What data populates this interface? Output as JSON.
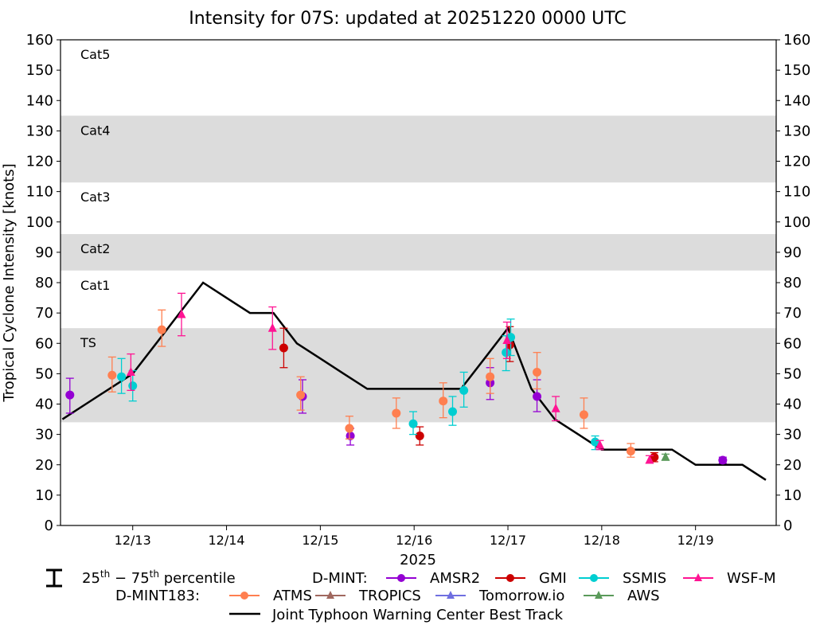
{
  "chart_data": {
    "type": "scatter",
    "title": "Intensity for 07S: updated at 20251220 0000 UTC",
    "ylabel": "Tropical Cyclone Intensity [knots]",
    "xlabel": "2025",
    "xlim": [
      12.23,
      19.86
    ],
    "ylim": [
      0,
      160
    ],
    "yticks": [
      0,
      10,
      20,
      30,
      40,
      50,
      60,
      70,
      80,
      90,
      100,
      110,
      120,
      130,
      140,
      150,
      160
    ],
    "xticks": [
      {
        "x": 13,
        "label": "12/13"
      },
      {
        "x": 14,
        "label": "12/14"
      },
      {
        "x": 15,
        "label": "12/15"
      },
      {
        "x": 16,
        "label": "12/16"
      },
      {
        "x": 17,
        "label": "12/17"
      },
      {
        "x": 18,
        "label": "12/18"
      },
      {
        "x": 19,
        "label": "12/19"
      }
    ],
    "category_bands": [
      {
        "label": "TS",
        "y0": 34,
        "y1": 65,
        "shaded": true
      },
      {
        "label": "Cat1",
        "y0": 65,
        "y1": 84,
        "shaded": false
      },
      {
        "label": "Cat2",
        "y0": 84,
        "y1": 96,
        "shaded": true
      },
      {
        "label": "Cat3",
        "y0": 96,
        "y1": 113,
        "shaded": false
      },
      {
        "label": "Cat4",
        "y0": 113,
        "y1": 135,
        "shaded": true
      },
      {
        "label": "Cat5",
        "y0": 135,
        "y1": 160,
        "shaded": false
      }
    ],
    "best_track": {
      "name": "Joint Typhoon Warning Center Best Track",
      "x": [
        12.25,
        12.5,
        12.75,
        13.0,
        13.25,
        13.5,
        13.75,
        14.0,
        14.25,
        14.5,
        14.75,
        15.0,
        15.25,
        15.5,
        15.75,
        16.0,
        16.25,
        16.5,
        16.75,
        17.0,
        17.25,
        17.5,
        17.75,
        18.0,
        18.25,
        18.5,
        18.75,
        19.0,
        19.25,
        19.5,
        19.75
      ],
      "y": [
        35,
        40,
        45,
        50,
        60,
        70,
        80,
        75,
        70,
        70,
        60,
        55,
        50,
        45,
        45,
        45,
        45,
        45,
        55,
        65,
        45,
        35,
        30,
        25,
        25,
        25,
        25,
        20,
        20,
        20,
        15
      ]
    },
    "series": [
      {
        "name": "AMSR2",
        "group": "D-MINT",
        "marker": "circle",
        "color": "#9400D3",
        "points": [
          {
            "x": 12.33,
            "y": 43,
            "lo": 37,
            "hi": 48.5
          },
          {
            "x": 14.81,
            "y": 42.5,
            "lo": 37,
            "hi": 48
          },
          {
            "x": 15.32,
            "y": 29.5,
            "lo": 26.5,
            "hi": 32
          },
          {
            "x": 16.81,
            "y": 47,
            "lo": 41.5,
            "hi": 52
          },
          {
            "x": 17.31,
            "y": 42.5,
            "lo": 37.5,
            "hi": 48
          },
          {
            "x": 19.29,
            "y": 21.5,
            "lo": 20.5,
            "hi": 22.5
          }
        ]
      },
      {
        "name": "GMI",
        "group": "D-MINT",
        "marker": "circle",
        "color": "#CC0000",
        "points": [
          {
            "x": 14.61,
            "y": 58.5,
            "lo": 52,
            "hi": 65
          },
          {
            "x": 16.06,
            "y": 29.5,
            "lo": 26.5,
            "hi": 32.5
          },
          {
            "x": 17.02,
            "y": 59.5,
            "lo": 54,
            "hi": 65.5
          },
          {
            "x": 18.56,
            "y": 22.5,
            "lo": 21,
            "hi": 24
          }
        ]
      },
      {
        "name": "SSMIS",
        "group": "D-MINT",
        "marker": "circle",
        "color": "#00CED1",
        "points": [
          {
            "x": 12.88,
            "y": 49,
            "lo": 43.5,
            "hi": 55
          },
          {
            "x": 13.0,
            "y": 46,
            "lo": 41,
            "hi": 51
          },
          {
            "x": 15.99,
            "y": 33.5,
            "lo": 30,
            "hi": 37.5
          },
          {
            "x": 16.41,
            "y": 37.5,
            "lo": 33,
            "hi": 42.5
          },
          {
            "x": 16.53,
            "y": 44.5,
            "lo": 39,
            "hi": 50.5
          },
          {
            "x": 16.98,
            "y": 57,
            "lo": 51,
            "hi": 62.5
          },
          {
            "x": 17.03,
            "y": 62,
            "lo": 56,
            "hi": 68
          },
          {
            "x": 17.93,
            "y": 27.5,
            "lo": 25,
            "hi": 29.5
          }
        ]
      },
      {
        "name": "WSF-M",
        "group": "D-MINT",
        "marker": "triangle",
        "color": "#FF1493",
        "points": [
          {
            "x": 12.98,
            "y": 50.5,
            "lo": 44.5,
            "hi": 56.5
          },
          {
            "x": 13.52,
            "y": 69.5,
            "lo": 62.5,
            "hi": 76.5
          },
          {
            "x": 14.49,
            "y": 65,
            "lo": 58,
            "hi": 72
          },
          {
            "x": 16.99,
            "y": 61,
            "lo": 55,
            "hi": 67
          },
          {
            "x": 17.51,
            "y": 38.5,
            "lo": 34.5,
            "hi": 42.5
          },
          {
            "x": 17.98,
            "y": 26.5,
            "lo": 25,
            "hi": 28
          },
          {
            "x": 18.51,
            "y": 21.5,
            "lo": 20.5,
            "hi": 23
          }
        ]
      },
      {
        "name": "ATMS",
        "group": "D-MINT183",
        "marker": "circle",
        "color": "#FF7F50",
        "points": [
          {
            "x": 12.78,
            "y": 49.5,
            "lo": 44,
            "hi": 55.5
          },
          {
            "x": 13.31,
            "y": 64.5,
            "lo": 59,
            "hi": 71
          },
          {
            "x": 14.79,
            "y": 43,
            "lo": 38,
            "hi": 49
          },
          {
            "x": 15.31,
            "y": 32,
            "lo": 28.5,
            "hi": 36
          },
          {
            "x": 15.81,
            "y": 37,
            "lo": 32,
            "hi": 42
          },
          {
            "x": 16.31,
            "y": 41,
            "lo": 35.5,
            "hi": 47
          },
          {
            "x": 16.81,
            "y": 49,
            "lo": 43.5,
            "hi": 55
          },
          {
            "x": 17.31,
            "y": 50.5,
            "lo": 45,
            "hi": 57
          },
          {
            "x": 17.81,
            "y": 36.5,
            "lo": 32,
            "hi": 42
          },
          {
            "x": 18.31,
            "y": 24.5,
            "lo": 22.5,
            "hi": 27
          }
        ]
      },
      {
        "name": "TROPICS",
        "group": "D-MINT183",
        "marker": "triangle",
        "color": "#A0685F",
        "points": []
      },
      {
        "name": "Tomorrow.io",
        "group": "D-MINT183",
        "marker": "triangle",
        "color": "#6F6FE0",
        "points": []
      },
      {
        "name": "AWS",
        "group": "D-MINT183",
        "marker": "triangle",
        "color": "#5A9A5A",
        "points": [
          {
            "x": 18.68,
            "y": 22.5,
            "lo": 21.5,
            "hi": 23.5
          }
        ]
      }
    ]
  },
  "legend": {
    "percentile_label": "25th − 75th percentile",
    "dmint_label": "D-MINT:",
    "dmint183_label": "D-MINT183:",
    "best_track_label": "Joint Typhoon Warning Center Best Track"
  }
}
